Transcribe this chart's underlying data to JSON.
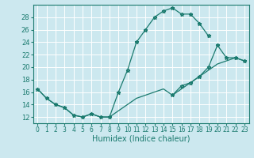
{
  "background_color": "#cce8ef",
  "grid_color": "#ffffff",
  "line_color": "#1a7a6e",
  "xlabel": "Humidex (Indice chaleur)",
  "xlim": [
    -0.5,
    23.5
  ],
  "ylim": [
    11,
    30
  ],
  "yticks": [
    12,
    14,
    16,
    18,
    20,
    22,
    24,
    26,
    28
  ],
  "xticks": [
    0,
    1,
    2,
    3,
    4,
    5,
    6,
    7,
    8,
    9,
    10,
    11,
    12,
    13,
    14,
    15,
    16,
    17,
    18,
    19,
    20,
    21,
    22,
    23
  ],
  "curve1_x": [
    0,
    1,
    2,
    3,
    4,
    5,
    6,
    7,
    8,
    9,
    10,
    11,
    12,
    13,
    14,
    15,
    16,
    17,
    18,
    19
  ],
  "curve1_y": [
    16.5,
    15.0,
    14.0,
    13.5,
    12.3,
    12.0,
    12.5,
    12.0,
    12.0,
    16.0,
    19.5,
    24.0,
    26.0,
    28.0,
    29.0,
    29.5,
    28.5,
    28.5,
    27.0,
    25.0
  ],
  "curve2_x": [
    15,
    16,
    17,
    18,
    19,
    20,
    21,
    22,
    23
  ],
  "curve2_y": [
    15.5,
    17.0,
    17.5,
    18.5,
    20.0,
    23.5,
    21.5,
    21.5,
    21.0
  ],
  "curve3_x": [
    0,
    1,
    2,
    3,
    4,
    5,
    6,
    7,
    8,
    9,
    10,
    11,
    12,
    13,
    14,
    15,
    16,
    17,
    18,
    19,
    20,
    21,
    22,
    23
  ],
  "curve3_y": [
    16.5,
    15.0,
    14.0,
    13.5,
    12.3,
    12.0,
    12.5,
    12.0,
    12.0,
    13.0,
    14.0,
    15.0,
    15.5,
    16.0,
    16.5,
    15.5,
    16.5,
    17.5,
    18.5,
    19.5,
    20.5,
    21.0,
    21.5,
    21.0
  ]
}
